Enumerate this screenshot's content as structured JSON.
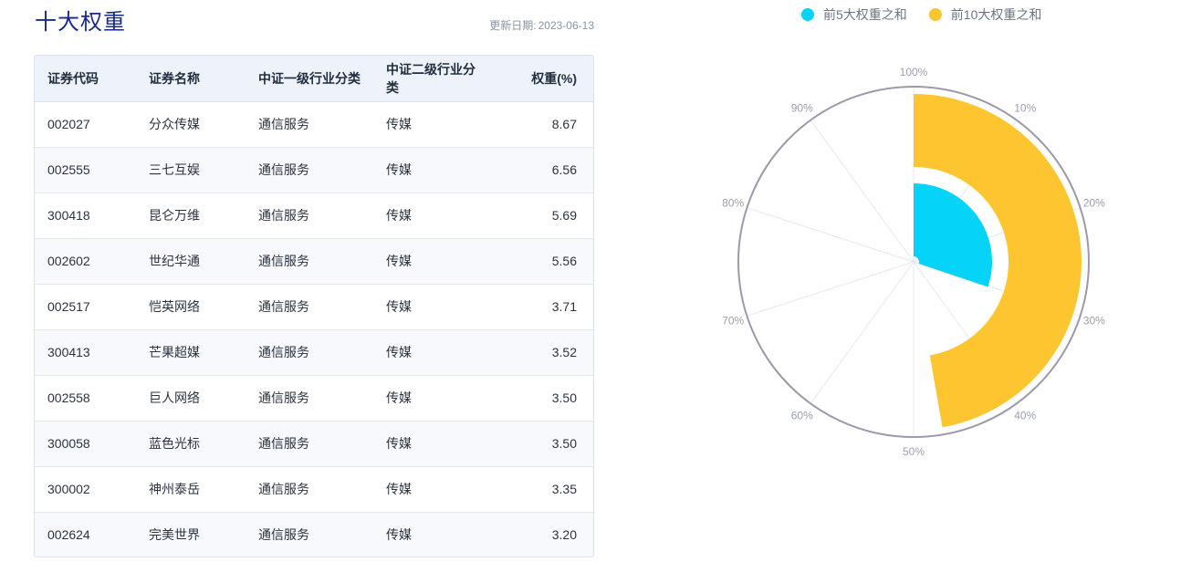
{
  "header": {
    "title": "十大权重",
    "update_label": "更新日期:",
    "update_date": "2023-06-13"
  },
  "table": {
    "columns": [
      "证券代码",
      "证券名称",
      "中证一级行业分类",
      "中证二级行业分类",
      "权重(%)"
    ],
    "rows": [
      [
        "002027",
        "分众传媒",
        "通信服务",
        "传媒",
        "8.67"
      ],
      [
        "002555",
        "三七互娱",
        "通信服务",
        "传媒",
        "6.56"
      ],
      [
        "300418",
        "昆仑万维",
        "通信服务",
        "传媒",
        "5.69"
      ],
      [
        "002602",
        "世纪华通",
        "通信服务",
        "传媒",
        "5.56"
      ],
      [
        "002517",
        "恺英网络",
        "通信服务",
        "传媒",
        "3.71"
      ],
      [
        "300413",
        "芒果超媒",
        "通信服务",
        "传媒",
        "3.52"
      ],
      [
        "002558",
        "巨人网络",
        "通信服务",
        "传媒",
        "3.50"
      ],
      [
        "300058",
        "蓝色光标",
        "通信服务",
        "传媒",
        "3.50"
      ],
      [
        "300002",
        "神州泰岳",
        "通信服务",
        "传媒",
        "3.35"
      ],
      [
        "002624",
        "完美世界",
        "通信服务",
        "传媒",
        "3.20"
      ]
    ]
  },
  "colors": {
    "top5": "#05d3f7",
    "top10": "#fdc631",
    "title": "#1a2a8c"
  },
  "chart_data": {
    "type": "polar-bar",
    "series": [
      {
        "name": "前5大权重之和",
        "value": 30.19,
        "color": "#05d3f7"
      },
      {
        "name": "前10大权重之和",
        "value": 47.26,
        "color": "#fdc631"
      }
    ],
    "angle_axis": {
      "min": 0,
      "max": 100,
      "tick_labels": [
        "100%",
        "10%",
        "20%",
        "30%",
        "40%",
        "50%",
        "60%",
        "70%",
        "80%",
        "90%"
      ]
    },
    "legend": "top"
  }
}
